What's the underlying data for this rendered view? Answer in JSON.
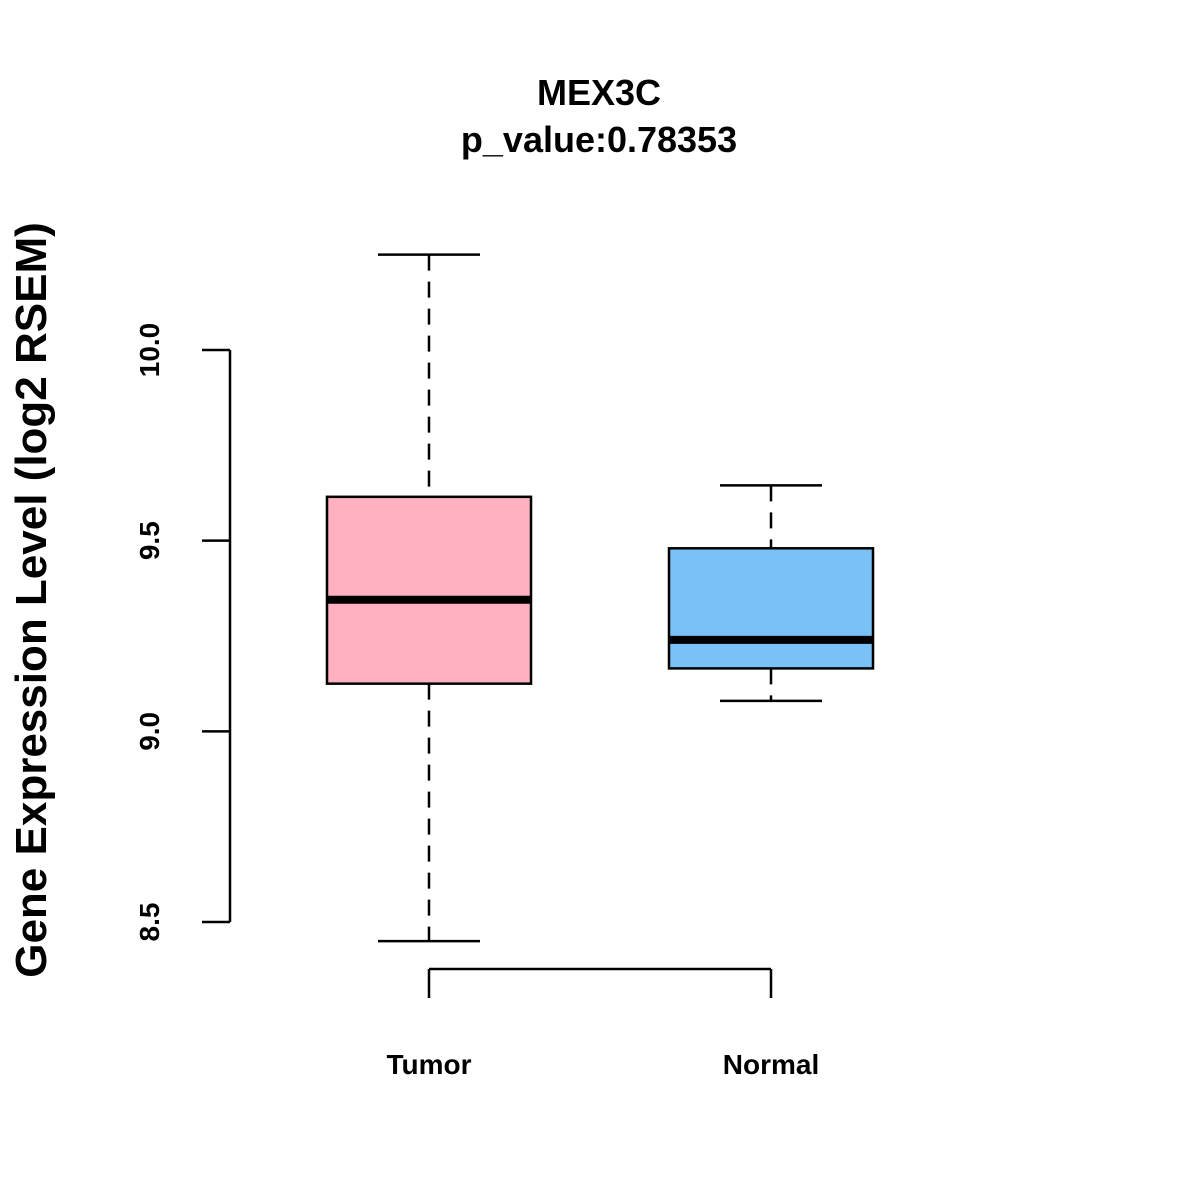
{
  "chart_data": {
    "type": "box",
    "title": "MEX3C",
    "subtitle": "p_value:0.78353",
    "xlabel": "",
    "ylabel": "Gene Expression Level (log2 RSEM)",
    "ylim": [
      8.5,
      10.0
    ],
    "yticks": [
      8.5,
      9.0,
      9.5,
      10.0
    ],
    "ytick_labels": [
      "8.5",
      "9.0",
      "9.5",
      "10.0"
    ],
    "categories": [
      "Tumor",
      "Normal"
    ],
    "series": [
      {
        "name": "Tumor",
        "color": "#FFB1C1",
        "whisker_low": 8.45,
        "q1": 9.125,
        "median": 9.345,
        "q3": 9.615,
        "whisker_high": 10.25
      },
      {
        "name": "Normal",
        "color": "#7AC1F8",
        "whisker_low": 9.08,
        "q1": 9.165,
        "median": 9.24,
        "q3": 9.48,
        "whisker_high": 9.645
      }
    ],
    "grid": false,
    "legend": "none"
  }
}
